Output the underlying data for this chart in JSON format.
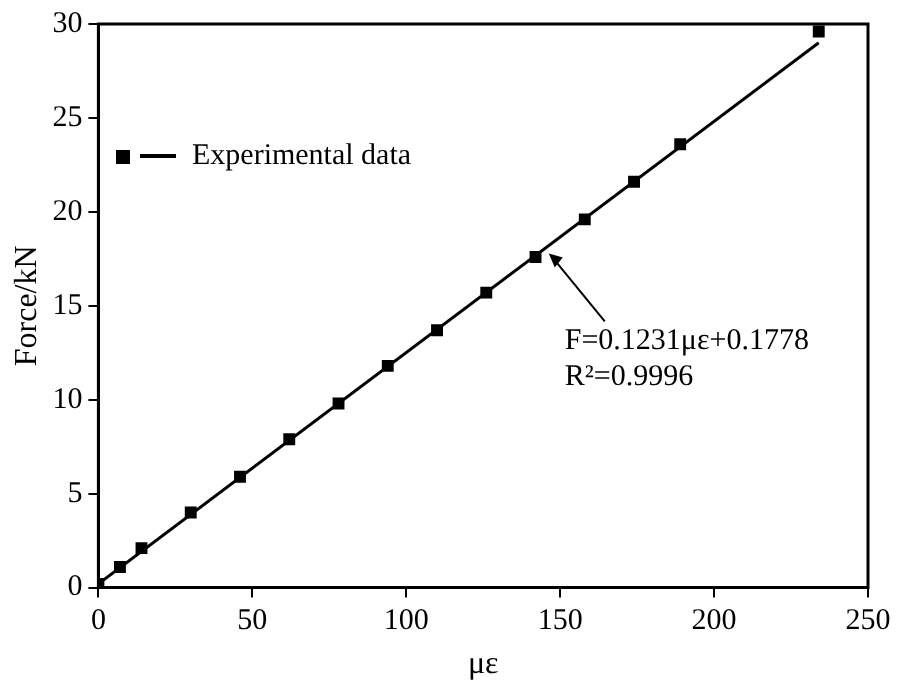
{
  "chart_data": {
    "type": "scatter",
    "xlabel": "με",
    "ylabel": "Force/kN",
    "series": [
      {
        "name": "Experimental data",
        "color": "#000000",
        "marker": "square",
        "x": [
          0,
          7,
          14,
          30,
          46,
          62,
          78,
          94,
          110,
          126,
          142,
          158,
          174,
          189,
          234
        ],
        "values": [
          0.2,
          1.1,
          2.1,
          4.0,
          5.9,
          7.9,
          9.8,
          11.8,
          13.7,
          15.7,
          17.6,
          19.6,
          21.6,
          23.6,
          29.6
        ]
      },
      {
        "type": "line",
        "color": "#000000",
        "marker": "none",
        "line_style": "solid",
        "x": [
          0,
          234
        ],
        "values": [
          0.2,
          29.0
        ]
      }
    ],
    "xlim": [
      0,
      250
    ],
    "ylim": [
      0,
      30
    ],
    "xticks": [
      0,
      50,
      100,
      150,
      200,
      250
    ],
    "yticks": [
      0,
      5,
      10,
      15,
      20,
      25,
      30
    ],
    "grid": false,
    "legend": "top left",
    "annotations": [
      {
        "text": "F=0.1231με+0.1778",
        "x": 145,
        "y": 18
      },
      "R²=0.9996"
    ]
  }
}
